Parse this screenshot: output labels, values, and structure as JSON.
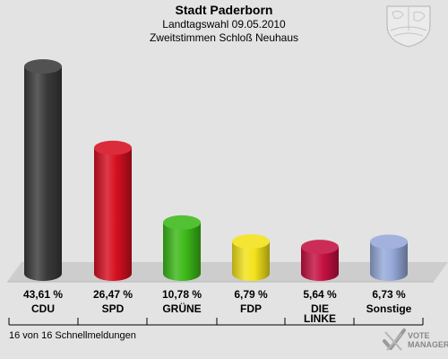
{
  "chart_data": {
    "type": "bar",
    "title": "Stadt Paderborn",
    "subtitles": [
      "Landtagswahl 09.05.2010",
      "Zweitstimmen Schloß Neuhaus"
    ],
    "categories": [
      "CDU",
      "SPD",
      "GRÜNE",
      "FDP",
      "DIE LINKE",
      "Sonstige"
    ],
    "category_lines": [
      [
        "CDU"
      ],
      [
        "SPD"
      ],
      [
        "GRÜNE"
      ],
      [
        "FDP"
      ],
      [
        "DIE",
        "LINKE"
      ],
      [
        "Sonstige"
      ]
    ],
    "values": [
      43.61,
      26.47,
      10.78,
      6.79,
      5.64,
      6.73
    ],
    "value_labels": [
      "43,61 %",
      "26,47 %",
      "10,78 %",
      "6,79 %",
      "5,64 %",
      "6,73 %"
    ],
    "colors": [
      "#3a3a3a",
      "#d50f20",
      "#3cb818",
      "#f3e21a",
      "#c41040",
      "#95a8d8"
    ],
    "grid": false,
    "legend": "none"
  },
  "footer": {
    "note": "16 von 16 Schnellmeldungen"
  },
  "brand": {
    "line1": "VOTE",
    "line2": "MANAGER"
  }
}
